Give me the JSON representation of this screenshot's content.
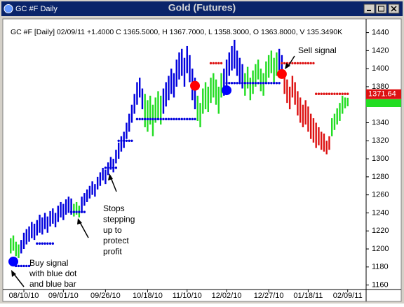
{
  "window_title": "GC #F Daily",
  "chart_data": {
    "type": "ohlc",
    "title": "Gold (Futures)",
    "info": "GC #F [Daily] 02/09/11  +1.4000 C 1365.5000, H 1367.7000, L 1358.3000, O 1363.8000, V 135.3490K",
    "ylim": [
      1155,
      1449
    ],
    "yticks": [
      1160,
      1180,
      1200,
      1220,
      1240,
      1260,
      1280,
      1300,
      1320,
      1340,
      1360,
      1380,
      1400,
      1420,
      1440
    ],
    "xlim": [
      -3,
      135
    ],
    "xticks": [
      {
        "value": 5,
        "label": "08/10/10"
      },
      {
        "value": 20,
        "label": "09/01/10"
      },
      {
        "value": 36,
        "label": "09/26/10"
      },
      {
        "value": 52,
        "label": "10/18/10"
      },
      {
        "value": 67,
        "label": "11/10/10"
      },
      {
        "value": 82,
        "label": "12/02/10"
      },
      {
        "value": 98,
        "label": "12/27/10"
      },
      {
        "value": 113,
        "label": "01/18/11"
      },
      {
        "value": 128,
        "label": "02/09/11"
      }
    ],
    "segments": [
      {
        "color": "#22dd22",
        "high": [
          1212,
          1215,
          1208,
          1205
        ],
        "low": [
          1195,
          1198,
          1192,
          1190
        ]
      },
      {
        "color": "#0000dd",
        "high": [
          1210,
          1218,
          1222,
          1225,
          1230,
          1228,
          1232,
          1238,
          1235,
          1240,
          1236,
          1242,
          1245,
          1240,
          1248,
          1252,
          1250,
          1255,
          1258,
          1256
        ],
        "low": [
          1195,
          1200,
          1205,
          1208,
          1212,
          1210,
          1215,
          1218,
          1216,
          1222,
          1218,
          1225,
          1228,
          1224,
          1230,
          1235,
          1232,
          1238,
          1240,
          1238
        ]
      },
      {
        "color": "#22dd22",
        "high": [
          1250,
          1252,
          1248
        ],
        "low": [
          1236,
          1238,
          1235
        ]
      },
      {
        "color": "#0000dd",
        "high": [
          1258,
          1262,
          1266,
          1270,
          1275,
          1272,
          1280,
          1285,
          1290,
          1288,
          1296,
          1302,
          1300,
          1310,
          1318,
          1325,
          1330,
          1340,
          1350,
          1360,
          1372,
          1385,
          1390,
          1378
        ],
        "low": [
          1242,
          1248,
          1252,
          1256,
          1260,
          1258,
          1266,
          1270,
          1276,
          1272,
          1282,
          1288,
          1285,
          1295,
          1300,
          1308,
          1312,
          1322,
          1330,
          1340,
          1350,
          1360,
          1368,
          1355
        ]
      },
      {
        "color": "#22dd22",
        "high": [
          1372,
          1365,
          1370,
          1360,
          1368,
          1375,
          1370
        ],
        "low": [
          1335,
          1330,
          1338,
          1325,
          1340,
          1345,
          1338
        ]
      },
      {
        "color": "#0000dd",
        "high": [
          1378,
          1385,
          1392,
          1400,
          1395,
          1410,
          1418,
          1422,
          1412,
          1425,
          1415,
          1400,
          1390
        ],
        "low": [
          1350,
          1358,
          1365,
          1372,
          1368,
          1380,
          1388,
          1392,
          1380,
          1395,
          1385,
          1365,
          1355
        ]
      },
      {
        "color": "#22dd22",
        "high": [
          1370,
          1362,
          1378,
          1385,
          1380,
          1390,
          1395,
          1388,
          1380,
          1395
        ],
        "low": [
          1342,
          1335,
          1350,
          1355,
          1352,
          1362,
          1368,
          1360,
          1350,
          1368
        ]
      },
      {
        "color": "#0000dd",
        "high": [
          1400,
          1410,
          1418,
          1425,
          1432,
          1420,
          1412,
          1405
        ],
        "low": [
          1370,
          1380,
          1392,
          1398,
          1400,
          1392,
          1385,
          1378
        ]
      },
      {
        "color": "#22dd22",
        "high": [
          1395,
          1402,
          1390,
          1398,
          1405,
          1410,
          1400,
          1395,
          1408,
          1415,
          1420,
          1412,
          1418
        ],
        "low": [
          1370,
          1378,
          1365,
          1372,
          1380,
          1388,
          1375,
          1370,
          1385,
          1390,
          1395,
          1385,
          1392
        ]
      },
      {
        "color": "#0000dd",
        "high": [
          1422,
          1415
        ],
        "low": [
          1398,
          1390
        ]
      },
      {
        "color": "#dd1111",
        "high": [
          1395,
          1388,
          1380,
          1392,
          1385,
          1375,
          1368,
          1360,
          1365,
          1358,
          1350,
          1345,
          1340,
          1335,
          1330,
          1328,
          1320,
          1325
        ],
        "low": [
          1372,
          1362,
          1355,
          1368,
          1360,
          1348,
          1340,
          1335,
          1338,
          1330,
          1322,
          1318,
          1312,
          1315,
          1310,
          1308,
          1305,
          1310
        ]
      },
      {
        "color": "#22dd22",
        "high": [
          1345,
          1350,
          1356,
          1362,
          1370,
          1368,
          1367.7
        ],
        "low": [
          1325,
          1332,
          1338,
          1342,
          1350,
          1356,
          1358.3
        ]
      }
    ],
    "stops": [
      {
        "color": "#0000dd",
        "first_bar": 2,
        "last_bar": 7,
        "value": 1181
      },
      {
        "color": "#0000dd",
        "first_bar": 10,
        "last_bar": 16,
        "value": 1206
      },
      {
        "color": "#0000dd",
        "first_bar": 23,
        "last_bar": 28,
        "value": 1241
      },
      {
        "color": "#0000dd",
        "first_bar": 36,
        "last_bar": 40,
        "value": 1290
      },
      {
        "color": "#0000dd",
        "first_bar": 41,
        "last_bar": 46,
        "value": 1320
      },
      {
        "color": "#0000dd",
        "first_bar": 48,
        "last_bar": 70,
        "value": 1344
      },
      {
        "color": "#dd1111",
        "first_bar": 76,
        "last_bar": 80,
        "value": 1406
      },
      {
        "color": "#0000dd",
        "first_bar": 82,
        "last_bar": 102,
        "value": 1384
      },
      {
        "color": "#dd1111",
        "first_bar": 103,
        "last_bar": 115,
        "value": 1406
      },
      {
        "color": "#dd1111",
        "first_bar": 116,
        "last_bar": 128,
        "value": 1372
      }
    ],
    "signals": [
      {
        "color": "#0000ff",
        "bar": 1,
        "value": 1186
      },
      {
        "color": "#ff0000",
        "bar": 70,
        "value": 1381
      },
      {
        "color": "#0000ff",
        "bar": 82,
        "value": 1376
      },
      {
        "color": "#ff0000",
        "bar": 103,
        "value": 1394
      }
    ],
    "last_price": 1371.64,
    "annotations": {
      "sell": "Sell signal",
      "stops": [
        "Stops",
        "stepping",
        "up to",
        "protect",
        "profit"
      ],
      "buy": [
        "Buy signal",
        "with blue dot",
        "and blue bar"
      ]
    }
  }
}
